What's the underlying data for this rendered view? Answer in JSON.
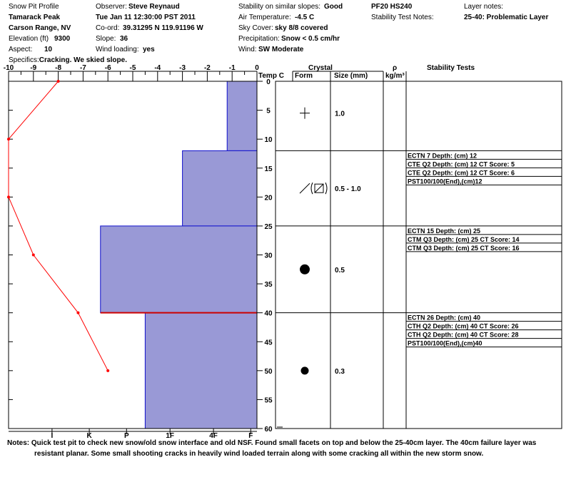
{
  "header": {
    "col1": {
      "title": "Snow Pit Profile",
      "location": "Tamarack Peak",
      "range": "Carson Range, NV",
      "elevation_label": "Elevation (ft)",
      "elevation": "9300",
      "aspect_label": "Aspect:",
      "aspect": "10"
    },
    "col2": {
      "observer_label": "Observer:",
      "observer": "Steve Reynaud",
      "datetime": "Tue Jan 11 12:30:00 PST 2011",
      "coord_label": "Co-ord:",
      "coord": "39.31295 N 119.91196 W",
      "slope_label": "Slope:",
      "slope": "36",
      "wind_loading_label": "Wind loading:",
      "wind_loading": "yes"
    },
    "col3": {
      "stability_label": "Stability on similar slopes:",
      "stability": "Good",
      "air_temp_label": "Air Temperature:",
      "air_temp": "-4.5 C",
      "sky_label": "Sky Cover:",
      "sky": "sky 8/8 covered",
      "precip_label": "Precipitation:",
      "precip": "Snow < 0.5 cm/hr",
      "wind_label": "Wind:",
      "wind": "SW Moderate"
    },
    "col4": {
      "pf": "PF20 HS240",
      "stability_test_notes_label": "Stability Test Notes:"
    },
    "col5": {
      "layer_notes_label": "Layer notes:",
      "layer_notes": "25-40: Problematic Layer"
    },
    "specifics_label": "Specifics:",
    "specifics": "Cracking. We skied slope."
  },
  "table_headers": {
    "temp": "Temp C",
    "crystal": "Crystal",
    "form": "Form",
    "size": "Size (mm)",
    "rho": "ρ",
    "rho_unit": "kg/m³",
    "stability_tests": "Stability Tests"
  },
  "chart_data": {
    "type": "bar",
    "temperature_axis": {
      "ticks": [
        -10,
        -9,
        -8,
        -7,
        -6,
        -5,
        -4,
        -3,
        -2,
        -1,
        0
      ],
      "range": [
        -10,
        0
      ]
    },
    "hardness_axis": {
      "labels": [
        "I",
        "K",
        "P",
        "1F",
        "4F",
        "F"
      ],
      "positions_temp_units": [
        -8.25,
        -6.75,
        -5.25,
        -3.5,
        -1.75,
        -0.25
      ]
    },
    "depth_axis": {
      "ticks": [
        0,
        5,
        10,
        15,
        20,
        25,
        30,
        35,
        40,
        45,
        50,
        55,
        60
      ],
      "range": [
        0,
        60
      ]
    },
    "hardness_layers": [
      {
        "top": 0,
        "bottom": 12,
        "left_temp": -1.2
      },
      {
        "top": 12,
        "bottom": 25,
        "left_temp": -3
      },
      {
        "top": 25,
        "bottom": 40,
        "left_temp": -6.3
      },
      {
        "top": 40,
        "bottom": 60,
        "left_temp": -4.5
      }
    ],
    "failure_layer_depth": 40,
    "temperature_profile": [
      {
        "depth": 0,
        "temp": -8
      },
      {
        "depth": 10,
        "temp": -10
      },
      {
        "depth": 20,
        "temp": -10
      },
      {
        "depth": 30,
        "temp": -9
      },
      {
        "depth": 40,
        "temp": -7.2
      },
      {
        "depth": 50,
        "temp": -6
      }
    ],
    "crystal_rows": [
      {
        "top": 0,
        "bottom": 12,
        "form": "plus",
        "size": "1.0",
        "depth_marker": 5.5
      },
      {
        "top": 12,
        "bottom": 25,
        "form": "facet",
        "size": "0.5 - 1.0",
        "depth_marker": 18.5
      },
      {
        "top": 25,
        "bottom": 40,
        "form": "round-large",
        "size": "0.5",
        "depth_marker": 32.5
      },
      {
        "top": 40,
        "bottom": 60,
        "form": "round",
        "size": "0.3",
        "depth_marker": 50
      }
    ],
    "stability_tests": [
      {
        "depth": 12,
        "lines": [
          "ECTN 7  Depth: (cm) 12",
          "CTE Q2 Depth: (cm) 12 CT Score: 5",
          "CTE Q2 Depth: (cm) 12 CT Score: 6",
          "PST100/100(End),(cm)12"
        ]
      },
      {
        "depth": 25,
        "lines": [
          "ECTN 15  Depth: (cm) 25",
          "CTM Q3 Depth: (cm) 25 CT Score: 14",
          "CTM Q3 Depth: (cm) 25 CT Score: 16"
        ]
      },
      {
        "depth": 40,
        "lines": [
          "ECTN 26  Depth: (cm) 40",
          "CTH Q2 Depth: (cm) 40 CT Score: 26",
          "CTH Q2 Depth: (cm) 40 CT Score: 28",
          "PST100/100(End),(cm)40"
        ]
      }
    ]
  },
  "notes": {
    "label": "Notes:",
    "line1": "Quick test pit to check new snow/old snow interface and old NSF.  Found small facets on top and below the 25-40cm layer.  The 40cm failure layer was",
    "line2": "resistant planar.  Some small shooting cracks in heavily wind loaded terrain along with some cracking all within the new storm snow."
  },
  "colors": {
    "layer_fill": "#9999d6",
    "layer_stroke": "#1010cc",
    "temp_line": "#ff0000",
    "failure_line": "#cc0000"
  }
}
